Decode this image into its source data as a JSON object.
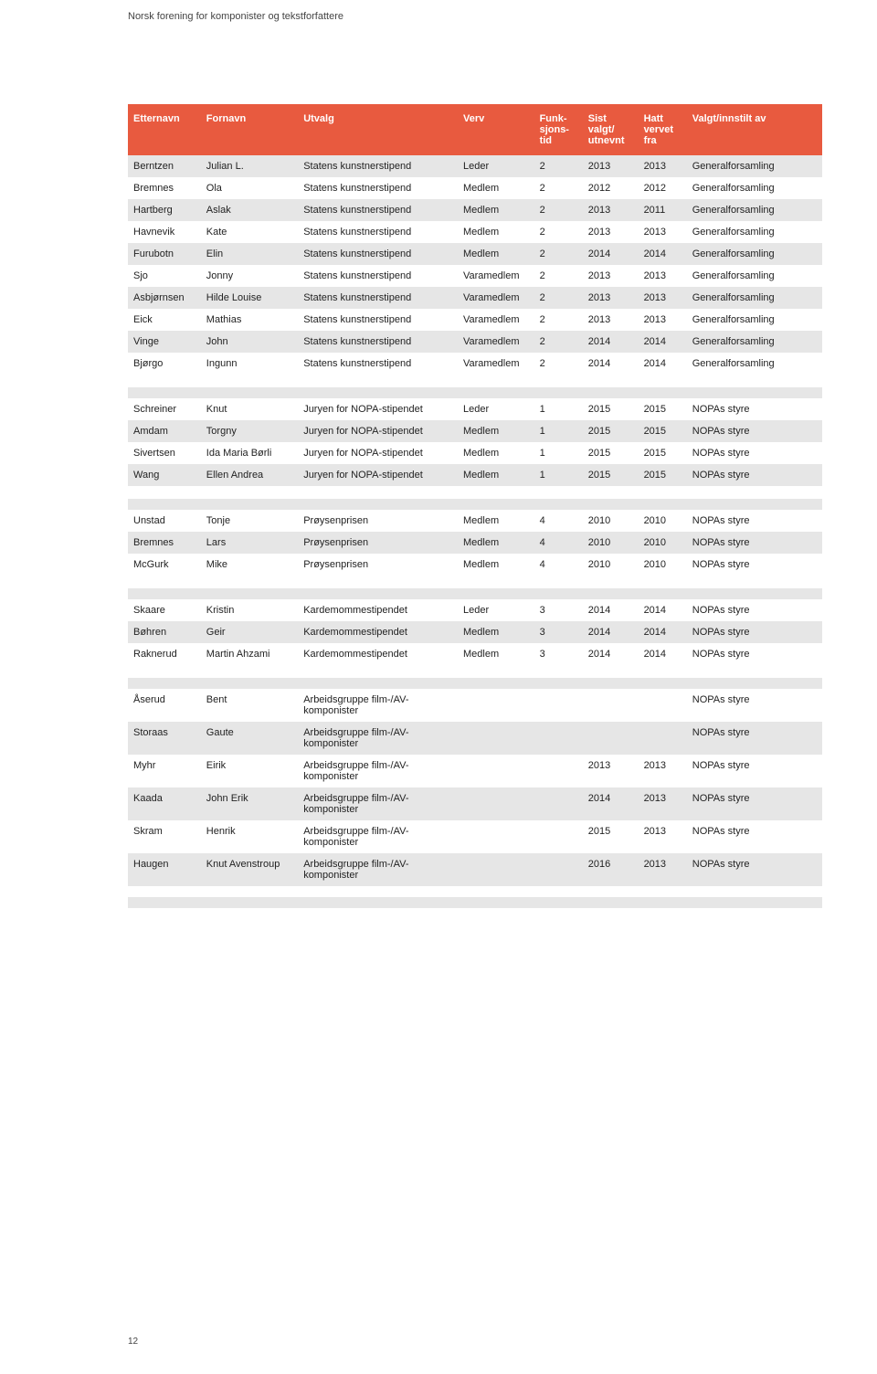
{
  "header": {
    "subtitle": "Norsk forening for komponister og tekstforfattere"
  },
  "page_number": "12",
  "table": {
    "header_bg": "#e85a3f",
    "header_fg": "#ffffff",
    "row_grey": "#e6e6e6",
    "row_white": "#ffffff",
    "columns": [
      "Etternavn",
      "Fornavn",
      "Utvalg",
      "Verv",
      "Funk-sjons-tid",
      "Sist valgt/ utnevnt",
      "Hatt vervet fra",
      "Valgt/innstilt av"
    ],
    "rows": [
      {
        "s": "grey",
        "c": [
          "Berntzen",
          "Julian L.",
          "Statens kunstnerstipend",
          "Leder",
          "2",
          "2013",
          "2013",
          "Generalforsamling"
        ]
      },
      {
        "s": "white",
        "c": [
          "Bremnes",
          "Ola",
          "Statens kunstnerstipend",
          "Medlem",
          "2",
          "2012",
          "2012",
          "Generalforsamling"
        ]
      },
      {
        "s": "grey",
        "c": [
          "Hartberg",
          "Aslak",
          "Statens kunstnerstipend",
          "Medlem",
          "2",
          "2013",
          "2011",
          "Generalforsamling"
        ]
      },
      {
        "s": "white",
        "c": [
          "Havnevik",
          "Kate",
          "Statens kunstnerstipend",
          "Medlem",
          "2",
          "2013",
          "2013",
          "Generalforsamling"
        ]
      },
      {
        "s": "grey",
        "c": [
          "Furubotn",
          "Elin",
          "Statens kunstnerstipend",
          "Medlem",
          "2",
          "2014",
          "2014",
          "Generalforsamling"
        ]
      },
      {
        "s": "white",
        "c": [
          "Sjo",
          "Jonny",
          "Statens kunstnerstipend",
          "Varamedlem",
          "2",
          "2013",
          "2013",
          "Generalforsamling"
        ]
      },
      {
        "s": "grey",
        "c": [
          "Asbjørnsen",
          "Hilde Louise",
          "Statens kunstnerstipend",
          "Varamedlem",
          "2",
          "2013",
          "2013",
          "Generalforsamling"
        ]
      },
      {
        "s": "white",
        "c": [
          "Eick",
          "Mathias",
          "Statens kunstnerstipend",
          "Varamedlem",
          "2",
          "2013",
          "2013",
          "Generalforsamling"
        ]
      },
      {
        "s": "grey",
        "c": [
          "Vinge",
          "John",
          "Statens kunstnerstipend",
          "Varamedlem",
          "2",
          "2014",
          "2014",
          "Generalforsamling"
        ]
      },
      {
        "s": "white",
        "c": [
          "Bjørgo",
          "Ingunn",
          "Statens kunstnerstipend",
          "Varamedlem",
          "2",
          "2014",
          "2014",
          "Generalforsamling"
        ]
      },
      {
        "s": "spacer"
      },
      {
        "s": "grey",
        "c": [
          "",
          "",
          "",
          "",
          "",
          "",
          "",
          ""
        ]
      },
      {
        "s": "white",
        "c": [
          "Schreiner",
          "Knut",
          "Juryen for NOPA-stipendet",
          "Leder",
          "1",
          "2015",
          "2015",
          "NOPAs styre"
        ]
      },
      {
        "s": "grey",
        "c": [
          "Amdam",
          "Torgny",
          "Juryen for NOPA-stipendet",
          "Medlem",
          "1",
          "2015",
          "2015",
          "NOPAs styre"
        ]
      },
      {
        "s": "white",
        "c": [
          "Sivertsen",
          "Ida Maria Børli",
          "Juryen for NOPA-stipendet",
          "Medlem",
          "1",
          "2015",
          "2015",
          "NOPAs styre"
        ]
      },
      {
        "s": "grey",
        "c": [
          "Wang",
          "Ellen Andrea",
          "Juryen for NOPA-stipendet",
          "Medlem",
          "1",
          "2015",
          "2015",
          "NOPAs styre"
        ]
      },
      {
        "s": "spacer"
      },
      {
        "s": "grey",
        "c": [
          "",
          "",
          "",
          "",
          "",
          "",
          "",
          ""
        ]
      },
      {
        "s": "white",
        "c": [
          "Unstad",
          "Tonje",
          "Prøysenprisen",
          "Medlem",
          "4",
          "2010",
          "2010",
          "NOPAs styre"
        ]
      },
      {
        "s": "grey",
        "c": [
          "Bremnes",
          "Lars",
          "Prøysenprisen",
          "Medlem",
          "4",
          "2010",
          "2010",
          "NOPAs styre"
        ]
      },
      {
        "s": "white",
        "c": [
          "McGurk",
          "Mike",
          "Prøysenprisen",
          "Medlem",
          "4",
          "2010",
          "2010",
          "NOPAs styre"
        ]
      },
      {
        "s": "spacer"
      },
      {
        "s": "grey",
        "c": [
          "",
          "",
          "",
          "",
          "",
          "",
          "",
          ""
        ]
      },
      {
        "s": "white",
        "c": [
          "Skaare",
          "Kristin",
          "Kardemommestipendet",
          "Leder",
          "3",
          "2014",
          "2014",
          "NOPAs styre"
        ]
      },
      {
        "s": "grey",
        "c": [
          "Bøhren",
          "Geir",
          "Kardemommestipendet",
          "Medlem",
          "3",
          "2014",
          "2014",
          "NOPAs styre"
        ]
      },
      {
        "s": "white",
        "c": [
          "Raknerud",
          "Martin Ahzami",
          "Kardemommestipendet",
          "Medlem",
          "3",
          "2014",
          "2014",
          "NOPAs styre"
        ]
      },
      {
        "s": "spacer"
      },
      {
        "s": "grey",
        "c": [
          "",
          "",
          "",
          "",
          "",
          "",
          "",
          ""
        ]
      },
      {
        "s": "white",
        "c": [
          "Åserud",
          "Bent",
          "Arbeidsgruppe film-/AV-komponister",
          "",
          "",
          "",
          "",
          "NOPAs styre"
        ]
      },
      {
        "s": "grey",
        "c": [
          "Storaas",
          "Gaute",
          "Arbeidsgruppe film-/AV-komponister",
          "",
          "",
          "",
          "",
          "NOPAs styre"
        ]
      },
      {
        "s": "white",
        "c": [
          "Myhr",
          "Eirik",
          "Arbeidsgruppe film-/AV-komponister",
          "",
          "",
          "2013",
          "2013",
          "NOPAs styre"
        ]
      },
      {
        "s": "grey",
        "c": [
          "Kaada",
          "John Erik",
          "Arbeidsgruppe film-/AV-komponister",
          "",
          "",
          "2014",
          "2013",
          "NOPAs styre"
        ]
      },
      {
        "s": "white",
        "c": [
          "Skram",
          "Henrik",
          "Arbeidsgruppe film-/AV-komponister",
          "",
          "",
          "2015",
          "2013",
          "NOPAs styre"
        ]
      },
      {
        "s": "grey",
        "c": [
          "Haugen",
          "Knut Avenstroup",
          "Arbeidsgruppe film-/AV-komponister",
          "",
          "",
          "2016",
          "2013",
          "NOPAs styre"
        ]
      },
      {
        "s": "white",
        "c": [
          "",
          "",
          "",
          "",
          "",
          "",
          "",
          ""
        ]
      },
      {
        "s": "grey",
        "c": [
          "",
          "",
          "",
          "",
          "",
          "",
          "",
          ""
        ]
      }
    ]
  }
}
